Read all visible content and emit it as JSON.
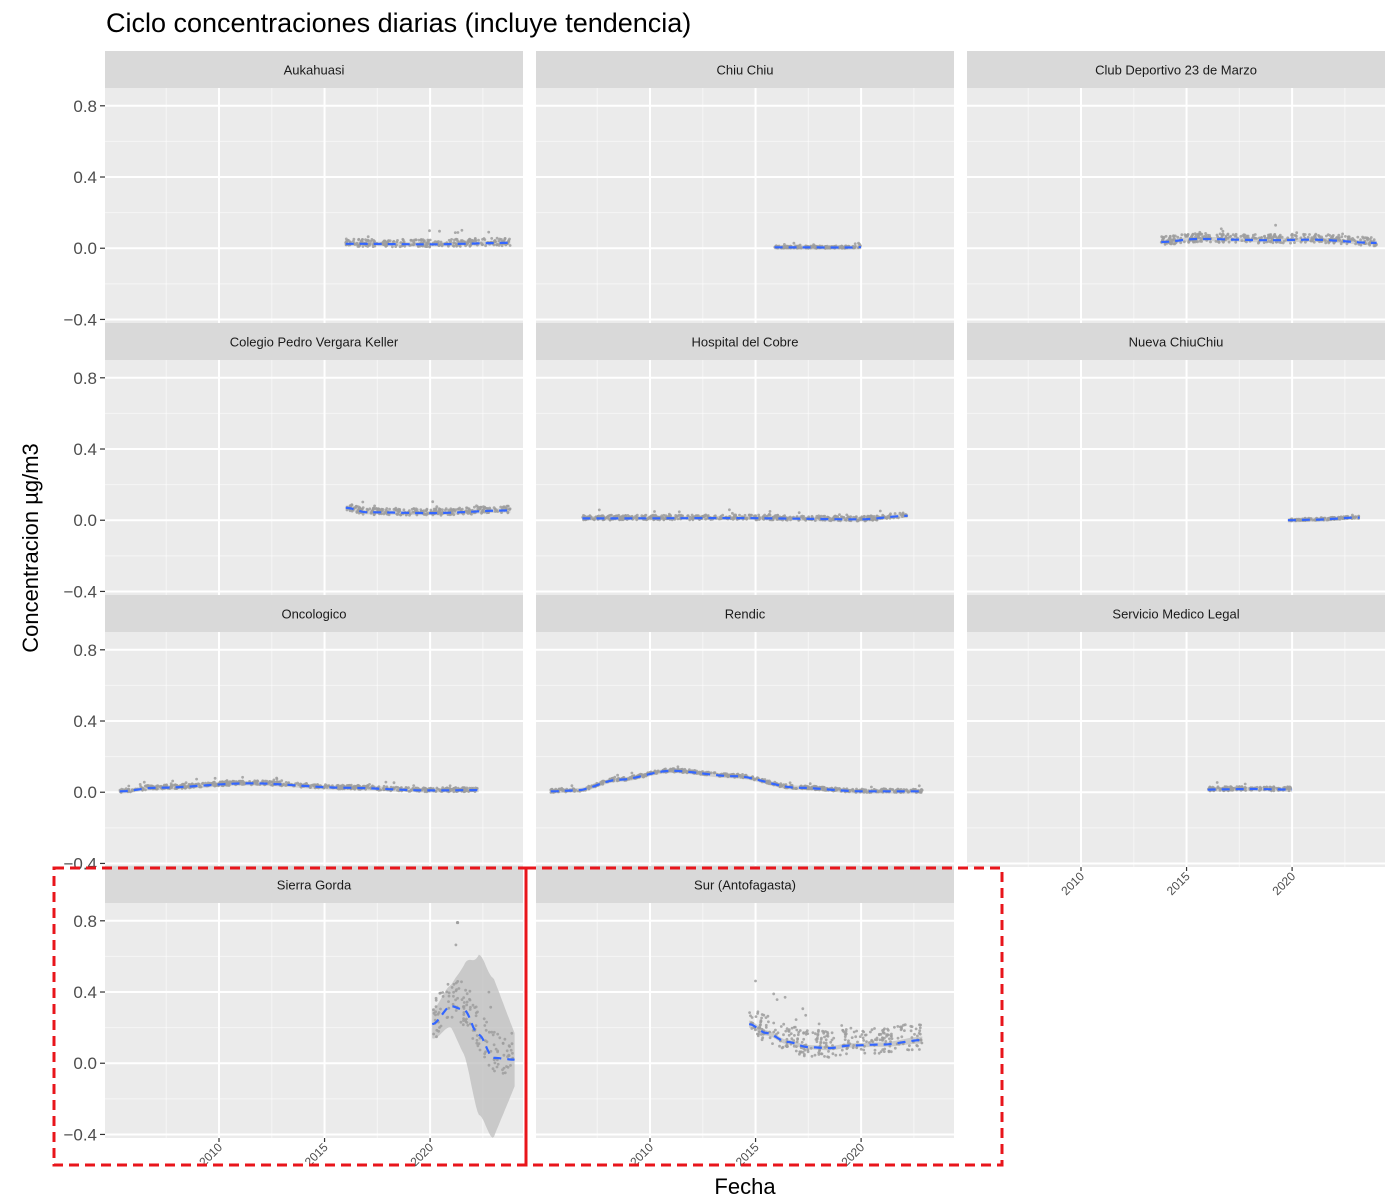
{
  "title": "Ciclo concentraciones diarias (incluye tendencia)",
  "chart_data": {
    "type": "scatter",
    "title": "Ciclo concentraciones diarias (incluye tendencia)",
    "xlabel": "Fecha",
    "ylabel": "Concentracion µg/m3",
    "xlim": [
      2004.6,
      2024.4
    ],
    "ylim": [
      -0.42,
      0.9
    ],
    "x_ticks": [
      2010,
      2015,
      2020
    ],
    "x_tick_labels": [
      "2010",
      "2015",
      "2020"
    ],
    "y_ticks": [
      0.8,
      0.4,
      0.0,
      -0.4
    ],
    "y_tick_labels": [
      "0.8",
      "0.4",
      "0.0",
      "−0.4"
    ],
    "grid": true,
    "trend_line": "loess (dashed blue) with grey confidence band",
    "colors": {
      "panel_bg": "#ebebeb",
      "strip_bg": "#d9d9d9",
      "grid": "#ffffff",
      "points": "#9e9e9e",
      "trend": "#3366ff",
      "band": "#bdbdbd",
      "highlight_box": "#e8151b"
    },
    "panels": [
      {
        "name": "Aukahuasi",
        "x_start": 2016.0,
        "x_end": 2023.8,
        "y_level": 0.028,
        "noise": 0.022,
        "trend": [
          [
            2016.0,
            0.025
          ],
          [
            2020.0,
            0.022
          ],
          [
            2023.8,
            0.03
          ]
        ]
      },
      {
        "name": "Chiu Chiu",
        "x_start": 2015.9,
        "x_end": 2020.0,
        "y_level": 0.005,
        "noise": 0.007,
        "trend": [
          [
            2015.9,
            0.005
          ],
          [
            2019.5,
            0.004
          ],
          [
            2020.0,
            0.006
          ]
        ]
      },
      {
        "name": "Club Deportivo 23 de Marzo",
        "x_start": 2013.8,
        "x_end": 2024.0,
        "y_level": 0.045,
        "noise": 0.025,
        "trend": [
          [
            2013.8,
            0.035
          ],
          [
            2015.5,
            0.052
          ],
          [
            2019.0,
            0.045
          ],
          [
            2021.0,
            0.048
          ],
          [
            2024.0,
            0.03
          ]
        ]
      },
      {
        "name": "Colegio Pedro Vergara Keller",
        "x_start": 2016.0,
        "x_end": 2023.8,
        "y_level": 0.045,
        "noise": 0.02,
        "trend": [
          [
            2016.0,
            0.07
          ],
          [
            2017.0,
            0.045
          ],
          [
            2020.0,
            0.04
          ],
          [
            2023.8,
            0.055
          ]
        ]
      },
      {
        "name": "Hospital del Cobre",
        "x_start": 2006.8,
        "x_end": 2022.2,
        "y_level": 0.012,
        "noise": 0.014,
        "trend": [
          [
            2006.8,
            0.01
          ],
          [
            2014.0,
            0.012
          ],
          [
            2020.0,
            0.005
          ],
          [
            2022.2,
            0.025
          ]
        ]
      },
      {
        "name": "Nueva ChiuChiu",
        "x_start": 2019.8,
        "x_end": 2023.2,
        "y_level": 0.006,
        "noise": 0.007,
        "trend": [
          [
            2019.8,
            0.0
          ],
          [
            2021.0,
            0.003
          ],
          [
            2023.2,
            0.015
          ]
        ]
      },
      {
        "name": "Oncologico",
        "x_start": 2005.3,
        "x_end": 2022.3,
        "y_level": 0.015,
        "noise": 0.012,
        "trend": [
          [
            2005.3,
            0.005
          ],
          [
            2007.0,
            0.025
          ],
          [
            2011.5,
            0.05
          ],
          [
            2016.0,
            0.025
          ],
          [
            2020.0,
            0.01
          ],
          [
            2022.3,
            0.012
          ]
        ]
      },
      {
        "name": "Rendic",
        "x_start": 2005.3,
        "x_end": 2022.9,
        "y_level": 0.01,
        "noise": 0.01,
        "trend": [
          [
            2005.3,
            0.005
          ],
          [
            2006.5,
            0.01
          ],
          [
            2008.5,
            0.07
          ],
          [
            2011.0,
            0.12
          ],
          [
            2014.0,
            0.09
          ],
          [
            2017.0,
            0.025
          ],
          [
            2020.0,
            0.005
          ],
          [
            2022.9,
            0.005
          ]
        ]
      },
      {
        "name": "Servicio Medico Legal",
        "x_start": 2016.0,
        "x_end": 2020.0,
        "y_level": 0.02,
        "noise": 0.012,
        "trend": [
          [
            2016.0,
            0.015
          ],
          [
            2018.0,
            0.018
          ],
          [
            2020.0,
            0.015
          ]
        ]
      },
      {
        "name": "Sierra Gorda",
        "x_start": 2020.1,
        "x_end": 2024.0,
        "y_level": 0.15,
        "noise": 0.12,
        "highlighted": true,
        "trend": [
          [
            2020.1,
            0.22
          ],
          [
            2021.0,
            0.32
          ],
          [
            2021.6,
            0.3
          ],
          [
            2022.3,
            0.16
          ],
          [
            2023.0,
            0.03
          ],
          [
            2024.0,
            0.02
          ]
        ],
        "band_half_width": [
          0.08,
          0.12,
          0.25,
          0.45,
          0.45,
          0.15
        ]
      },
      {
        "name": "Sur (Antofagasta)",
        "x_start": 2014.7,
        "x_end": 2022.9,
        "y_level": 0.1,
        "noise": 0.075,
        "highlighted": true,
        "trend": [
          [
            2014.7,
            0.22
          ],
          [
            2015.5,
            0.17
          ],
          [
            2016.5,
            0.12
          ],
          [
            2017.5,
            0.09
          ],
          [
            2018.5,
            0.085
          ],
          [
            2019.5,
            0.1
          ],
          [
            2021.0,
            0.105
          ],
          [
            2022.9,
            0.13
          ]
        ],
        "band_half_width": [
          0.02,
          0.015,
          0.012,
          0.012,
          0.012,
          0.012,
          0.012,
          0.02
        ]
      }
    ]
  }
}
